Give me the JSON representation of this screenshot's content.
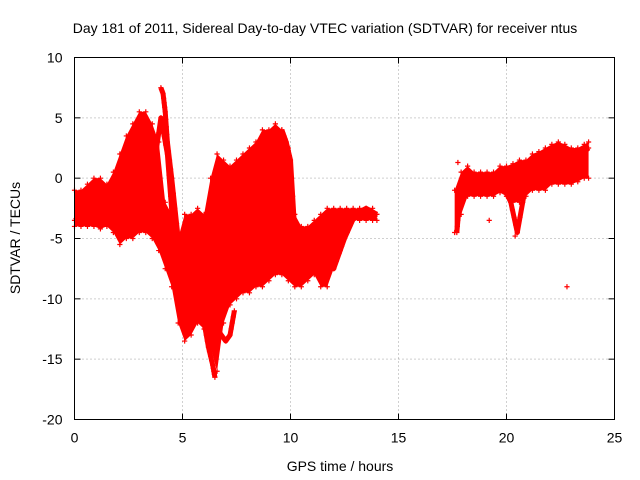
{
  "chart_data": {
    "type": "scatter",
    "title": "Day 181 of 2011, Sidereal Day-to-day VTEC variation (SDTVAR) for receiver ntus",
    "xlabel": "GPS time / hours",
    "ylabel": "SDTVAR / TECUs",
    "xlim": [
      0,
      25
    ],
    "ylim": [
      -20,
      10
    ],
    "xticks": [
      0,
      5,
      10,
      15,
      20,
      25
    ],
    "yticks": [
      -20,
      -15,
      -10,
      -5,
      0,
      5,
      10
    ],
    "xtick_labels": [
      "0",
      "5",
      "10",
      "15",
      "20",
      "25"
    ],
    "ytick_labels": [
      "-20",
      "-15",
      "-10",
      "-5",
      "0",
      "5",
      "10"
    ],
    "grid": true,
    "marker": "+",
    "color": "#ff0000",
    "series": [
      {
        "name": "ntus",
        "bands": [
          {
            "x": [
              0.0,
              0.3,
              0.6,
              0.9,
              1.2,
              1.5,
              1.8,
              2.1,
              2.4,
              2.7,
              3.0,
              3.3,
              3.6,
              3.9,
              4.2,
              4.5,
              4.8,
              5.1,
              5.4,
              5.7,
              6.0,
              6.3,
              6.6,
              6.9,
              7.2,
              7.5,
              7.8,
              8.1,
              8.4,
              8.7,
              9.0,
              9.3,
              9.6,
              9.9,
              10.2,
              10.5,
              10.8,
              11.1,
              11.4,
              11.7,
              12.0,
              12.3,
              12.6,
              12.9,
              13.2,
              13.5,
              13.8,
              14.0
            ],
            "low": [
              -4.0,
              -4.0,
              -4.0,
              -4.0,
              -4.2,
              -4.0,
              -4.5,
              -5.5,
              -5.0,
              -5.0,
              -4.5,
              -4.5,
              -5.0,
              -6.0,
              -7.5,
              -9.0,
              -12.0,
              -13.5,
              -13.0,
              -12.0,
              -12.5,
              -14.0,
              -16.0,
              -12.0,
              -10.5,
              -10.0,
              -9.5,
              -9.5,
              -9.0,
              -9.0,
              -8.5,
              -8.0,
              -8.0,
              -8.5,
              -9.0,
              -9.0,
              -8.5,
              -8.0,
              -9.0,
              -9.0,
              -7.5,
              -6.0,
              -4.5,
              -3.5,
              -3.5,
              -3.5,
              -3.5,
              -3.5
            ],
            "high": [
              -1.0,
              -1.0,
              -0.5,
              0.0,
              0.0,
              -0.5,
              0.5,
              2.0,
              3.5,
              4.5,
              5.5,
              5.5,
              4.5,
              3.0,
              -2.0,
              -3.0,
              -5.0,
              -3.0,
              -3.0,
              -2.5,
              -3.0,
              0.0,
              2.0,
              1.5,
              1.0,
              1.5,
              2.0,
              2.5,
              3.0,
              4.0,
              4.0,
              4.5,
              4.0,
              2.5,
              -3.0,
              -4.0,
              -4.0,
              -3.5,
              -3.0,
              -2.5,
              -2.5,
              -2.5,
              -2.5,
              -2.5,
              -2.5,
              -2.5,
              -2.5,
              -3.0
            ]
          },
          {
            "x": [
              17.6,
              17.9,
              18.2,
              18.5,
              18.8,
              19.1,
              19.4,
              19.7,
              20.0,
              20.3,
              20.6,
              20.9,
              21.2,
              21.5,
              21.8,
              22.1,
              22.4,
              22.7,
              23.0,
              23.3,
              23.6,
              23.8
            ],
            "low": [
              -4.5,
              -3.0,
              -1.5,
              -1.5,
              -1.5,
              -1.5,
              -1.5,
              -1.2,
              -1.5,
              -2.0,
              -2.0,
              -1.5,
              -1.0,
              -1.0,
              -1.0,
              -0.5,
              -0.5,
              -0.5,
              -0.5,
              -0.3,
              0.0,
              0.0
            ],
            "high": [
              -1.0,
              0.5,
              1.0,
              0.5,
              0.5,
              0.5,
              0.5,
              1.0,
              1.0,
              1.2,
              1.5,
              1.5,
              2.0,
              2.2,
              2.5,
              2.8,
              3.0,
              2.8,
              2.5,
              2.5,
              2.8,
              3.0
            ]
          }
        ],
        "ridges": [
          {
            "x": [
              0.0,
              0.5,
              1.0,
              1.5,
              2.0,
              2.5,
              3.0,
              3.3,
              3.6,
              4.0,
              4.3,
              4.6,
              5.0
            ],
            "y": [
              -3.5,
              -3.0,
              -2.0,
              -3.0,
              -4.0,
              -4.0,
              -3.8,
              -2.0,
              0.0,
              5.0,
              2.0,
              -5.0,
              -8.0
            ]
          },
          {
            "x": [
              4.0,
              4.1,
              4.2,
              4.3,
              4.5,
              4.8,
              5.2
            ],
            "y": [
              7.5,
              7.0,
              5.5,
              3.0,
              0.0,
              -5.0,
              -10.0
            ]
          },
          {
            "x": [
              5.0,
              5.5,
              6.0,
              6.2,
              6.4,
              6.5
            ],
            "y": [
              -8.0,
              -10.0,
              -12.0,
              -14.0,
              -15.5,
              -16.5
            ]
          },
          {
            "x": [
              6.5,
              6.6,
              6.8,
              7.0,
              7.2,
              7.4
            ],
            "y": [
              -12.0,
              -12.5,
              -13.0,
              -13.5,
              -13.0,
              -11.0
            ]
          },
          {
            "x": [
              9.6,
              9.8,
              10.0,
              10.2,
              10.5,
              11.0,
              11.5,
              12.0,
              12.5,
              13.0,
              13.5,
              14.0
            ],
            "y": [
              4.0,
              3.0,
              1.5,
              -4.5,
              -5.5,
              -6.0,
              -7.0,
              -7.5,
              -5.0,
              -3.0,
              -2.5,
              -3.0
            ]
          },
          {
            "x": [
              17.7,
              17.8,
              18.0,
              18.3,
              18.8,
              19.3,
              19.8,
              20.2,
              20.5,
              21.0,
              21.5,
              22.0,
              22.5,
              23.0,
              23.5,
              23.8
            ],
            "y": [
              -4.5,
              -2.5,
              -0.5,
              0.0,
              0.0,
              0.0,
              -0.5,
              -2.0,
              -4.5,
              0.5,
              1.0,
              1.5,
              1.5,
              1.5,
              2.0,
              2.5
            ]
          }
        ],
        "outliers": [
          {
            "x": 17.75,
            "y": 1.3
          },
          {
            "x": 19.2,
            "y": -3.5
          },
          {
            "x": 20.4,
            "y": -4.8
          },
          {
            "x": 22.8,
            "y": -9.0
          }
        ]
      }
    ]
  }
}
